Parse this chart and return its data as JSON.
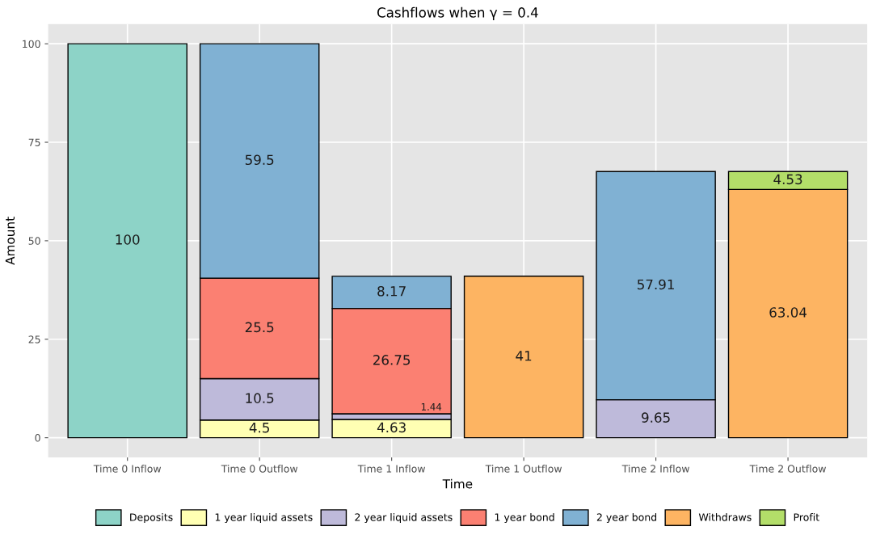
{
  "chart_data": {
    "type": "bar",
    "title": "Cashflows when γ = 0.4",
    "xlabel": "Time",
    "ylabel": "Amount",
    "categories": [
      "Time 0 Inflow",
      "Time 0 Outflow",
      "Time 1 Inflow",
      "Time 1 Outflow",
      "Time 2 Inflow",
      "Time 2 Outflow"
    ],
    "stacked": true,
    "data_labels": true,
    "grid": true,
    "legend": "bottom",
    "ylim": [
      -5,
      105
    ],
    "yticks": [
      0,
      25,
      50,
      75,
      100
    ],
    "series": [
      {
        "name": "Deposits",
        "color": "#8dd3c7",
        "values": [
          100,
          null,
          null,
          null,
          null,
          null
        ]
      },
      {
        "name": "1 year liquid assets",
        "color": "#ffffb3",
        "values": [
          null,
          4.5,
          4.63,
          null,
          null,
          null
        ]
      },
      {
        "name": "2 year liquid assets",
        "color": "#bebada",
        "values": [
          null,
          10.5,
          1.44,
          null,
          9.65,
          null
        ]
      },
      {
        "name": "1 year bond",
        "color": "#fb8072",
        "values": [
          null,
          25.5,
          26.75,
          null,
          null,
          null
        ]
      },
      {
        "name": "2 year bond",
        "color": "#80b1d3",
        "values": [
          null,
          59.5,
          8.17,
          null,
          57.91,
          null
        ]
      },
      {
        "name": "Withdraws",
        "color": "#fdb462",
        "values": [
          null,
          null,
          null,
          41,
          null,
          63.04
        ]
      },
      {
        "name": "Profit",
        "color": "#b3de69",
        "values": [
          null,
          null,
          null,
          null,
          null,
          4.53
        ]
      }
    ]
  }
}
